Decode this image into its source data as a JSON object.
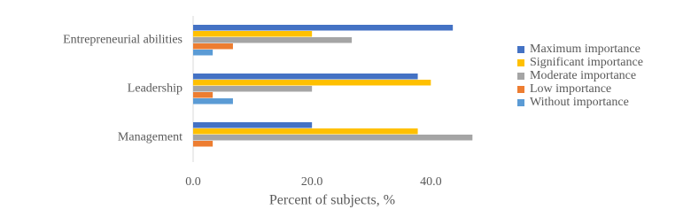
{
  "chart_data": {
    "type": "hbar",
    "x_label": "Percent of subjects, %",
    "categories": [
      "Entrepreneurial abilities",
      "Leadership",
      "Management"
    ],
    "series": [
      {
        "name": "Maximum importance",
        "color": "#4472c4",
        "values": [
          43.7,
          37.8,
          20
        ]
      },
      {
        "name": "Significant importance",
        "color": "#ffc000",
        "values": [
          20,
          40,
          37.8
        ]
      },
      {
        "name": "Moderate importance",
        "color": "#a5a5a5",
        "values": [
          26.7,
          20,
          47
        ]
      },
      {
        "name": "Low importance",
        "color": "#ed7d31",
        "values": [
          6.7,
          3.3,
          3.3
        ]
      },
      {
        "name": "Without importance",
        "color": "#5b9bd5",
        "values": [
          3.3,
          6.7,
          0
        ]
      }
    ],
    "xlim": [
      0,
      48
    ],
    "xticks": [
      {
        "value": 0,
        "label": "0.0"
      },
      {
        "value": 20,
        "label": "20.0"
      },
      {
        "value": 40,
        "label": "40.0"
      }
    ],
    "legend": "right"
  }
}
